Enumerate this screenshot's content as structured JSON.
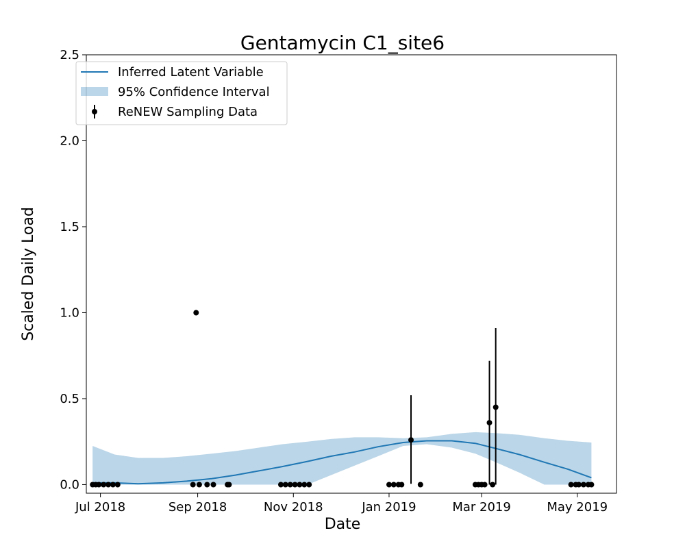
{
  "chart_data": {
    "type": "line",
    "title": "Gentamycin C1_site6",
    "xlabel": "Date",
    "ylabel": "Scaled Daily Load",
    "xlim": [
      "2018-06-22",
      "2019-05-26"
    ],
    "ylim": [
      -0.05,
      2.5
    ],
    "x_ticks": [
      {
        "date": "2018-07-01",
        "label": "Jul 2018"
      },
      {
        "date": "2018-09-01",
        "label": "Sep 2018"
      },
      {
        "date": "2018-11-01",
        "label": "Nov 2018"
      },
      {
        "date": "2019-01-01",
        "label": "Jan 2019"
      },
      {
        "date": "2019-03-01",
        "label": "Mar 2019"
      },
      {
        "date": "2019-05-01",
        "label": "May 2019"
      }
    ],
    "y_ticks": [
      0.0,
      0.5,
      1.0,
      1.5,
      2.0,
      2.5
    ],
    "y_tick_labels": [
      "0.0",
      "0.5",
      "1.0",
      "1.5",
      "2.0",
      "2.5"
    ],
    "grid": false,
    "legend": {
      "position": "upper-left",
      "entries": [
        {
          "label": "Inferred Latent Variable",
          "kind": "line",
          "color": "#1f77b4"
        },
        {
          "label": "95% Confidence Interval",
          "kind": "band",
          "color": "#1f77b4"
        },
        {
          "label": "ReNEW Sampling Data",
          "kind": "errorbar",
          "color": "#000000"
        }
      ]
    },
    "series": [
      {
        "name": "Inferred Latent Variable",
        "type": "line",
        "color": "#1f77b4",
        "x": [
          "2018-06-26",
          "2018-07-10",
          "2018-07-25",
          "2018-08-10",
          "2018-08-25",
          "2018-09-10",
          "2018-09-25",
          "2018-10-10",
          "2018-10-25",
          "2018-11-10",
          "2018-11-25",
          "2018-12-10",
          "2018-12-25",
          "2019-01-10",
          "2019-01-25",
          "2019-02-10",
          "2019-02-25",
          "2019-03-10",
          "2019-03-25",
          "2019-04-10",
          "2019-04-25",
          "2019-05-10"
        ],
        "y": [
          0.01,
          0.01,
          0.005,
          0.01,
          0.02,
          0.035,
          0.055,
          0.08,
          0.105,
          0.135,
          0.165,
          0.19,
          0.22,
          0.245,
          0.255,
          0.255,
          0.24,
          0.21,
          0.175,
          0.13,
          0.09,
          0.04
        ]
      },
      {
        "name": "95% Confidence Interval",
        "type": "area",
        "color": "#1f77b4",
        "x": [
          "2018-06-26",
          "2018-07-10",
          "2018-07-25",
          "2018-08-10",
          "2018-08-25",
          "2018-09-10",
          "2018-09-25",
          "2018-10-10",
          "2018-10-25",
          "2018-11-10",
          "2018-11-25",
          "2018-12-10",
          "2018-12-25",
          "2019-01-10",
          "2019-01-25",
          "2019-02-10",
          "2019-02-25",
          "2019-03-10",
          "2019-03-25",
          "2019-04-10",
          "2019-04-25",
          "2019-05-10"
        ],
        "upper": [
          0.225,
          0.175,
          0.155,
          0.155,
          0.165,
          0.18,
          0.195,
          0.215,
          0.235,
          0.25,
          0.265,
          0.275,
          0.275,
          0.27,
          0.275,
          0.295,
          0.305,
          0.3,
          0.29,
          0.27,
          0.255,
          0.245
        ],
        "lower": [
          0.0,
          0.0,
          0.0,
          0.0,
          0.0,
          0.0,
          0.0,
          0.0,
          0.0,
          0.0,
          0.055,
          0.11,
          0.165,
          0.225,
          0.235,
          0.215,
          0.18,
          0.13,
          0.07,
          0.0,
          0.0,
          0.0
        ]
      }
    ],
    "points": {
      "name": "ReNEW Sampling Data",
      "color": "#000000",
      "data": [
        {
          "x": "2018-06-26",
          "y": 0.0
        },
        {
          "x": "2018-06-28",
          "y": 0.0
        },
        {
          "x": "2018-06-30",
          "y": 0.0
        },
        {
          "x": "2018-07-03",
          "y": 0.0
        },
        {
          "x": "2018-07-06",
          "y": 0.0
        },
        {
          "x": "2018-07-09",
          "y": 0.0
        },
        {
          "x": "2018-07-12",
          "y": 0.0
        },
        {
          "x": "2018-08-29",
          "y": 0.0
        },
        {
          "x": "2018-08-31",
          "y": 1.0
        },
        {
          "x": "2018-09-02",
          "y": 0.0
        },
        {
          "x": "2018-09-07",
          "y": 0.0
        },
        {
          "x": "2018-09-11",
          "y": 0.0
        },
        {
          "x": "2018-09-20",
          "y": 0.0
        },
        {
          "x": "2018-09-21",
          "y": 0.0
        },
        {
          "x": "2018-10-24",
          "y": 0.0
        },
        {
          "x": "2018-10-27",
          "y": 0.0
        },
        {
          "x": "2018-10-30",
          "y": 0.0
        },
        {
          "x": "2018-11-02",
          "y": 0.0
        },
        {
          "x": "2018-11-05",
          "y": 0.0
        },
        {
          "x": "2018-11-08",
          "y": 0.0
        },
        {
          "x": "2018-11-11",
          "y": 0.0
        },
        {
          "x": "2019-01-01",
          "y": 0.0
        },
        {
          "x": "2019-01-04",
          "y": 0.0
        },
        {
          "x": "2019-01-07",
          "y": 0.0
        },
        {
          "x": "2019-01-09",
          "y": 0.0
        },
        {
          "x": "2019-01-15",
          "y": 0.26,
          "err": [
            0.255,
            0.26
          ]
        },
        {
          "x": "2019-01-21",
          "y": 0.0
        },
        {
          "x": "2019-02-25",
          "y": 0.0
        },
        {
          "x": "2019-02-27",
          "y": 0.0
        },
        {
          "x": "2019-03-01",
          "y": 0.0
        },
        {
          "x": "2019-03-03",
          "y": 0.0
        },
        {
          "x": "2019-03-06",
          "y": 0.36,
          "err": [
            0.36,
            0.36
          ]
        },
        {
          "x": "2019-03-08",
          "y": 0.0
        },
        {
          "x": "2019-03-10",
          "y": 0.45,
          "err": [
            0.45,
            0.46
          ]
        },
        {
          "x": "2019-04-27",
          "y": 0.0
        },
        {
          "x": "2019-04-30",
          "y": 0.0
        },
        {
          "x": "2019-05-02",
          "y": 0.0
        },
        {
          "x": "2019-05-05",
          "y": 0.0
        },
        {
          "x": "2019-05-08",
          "y": 0.0
        },
        {
          "x": "2019-05-10",
          "y": 0.0
        }
      ]
    }
  }
}
